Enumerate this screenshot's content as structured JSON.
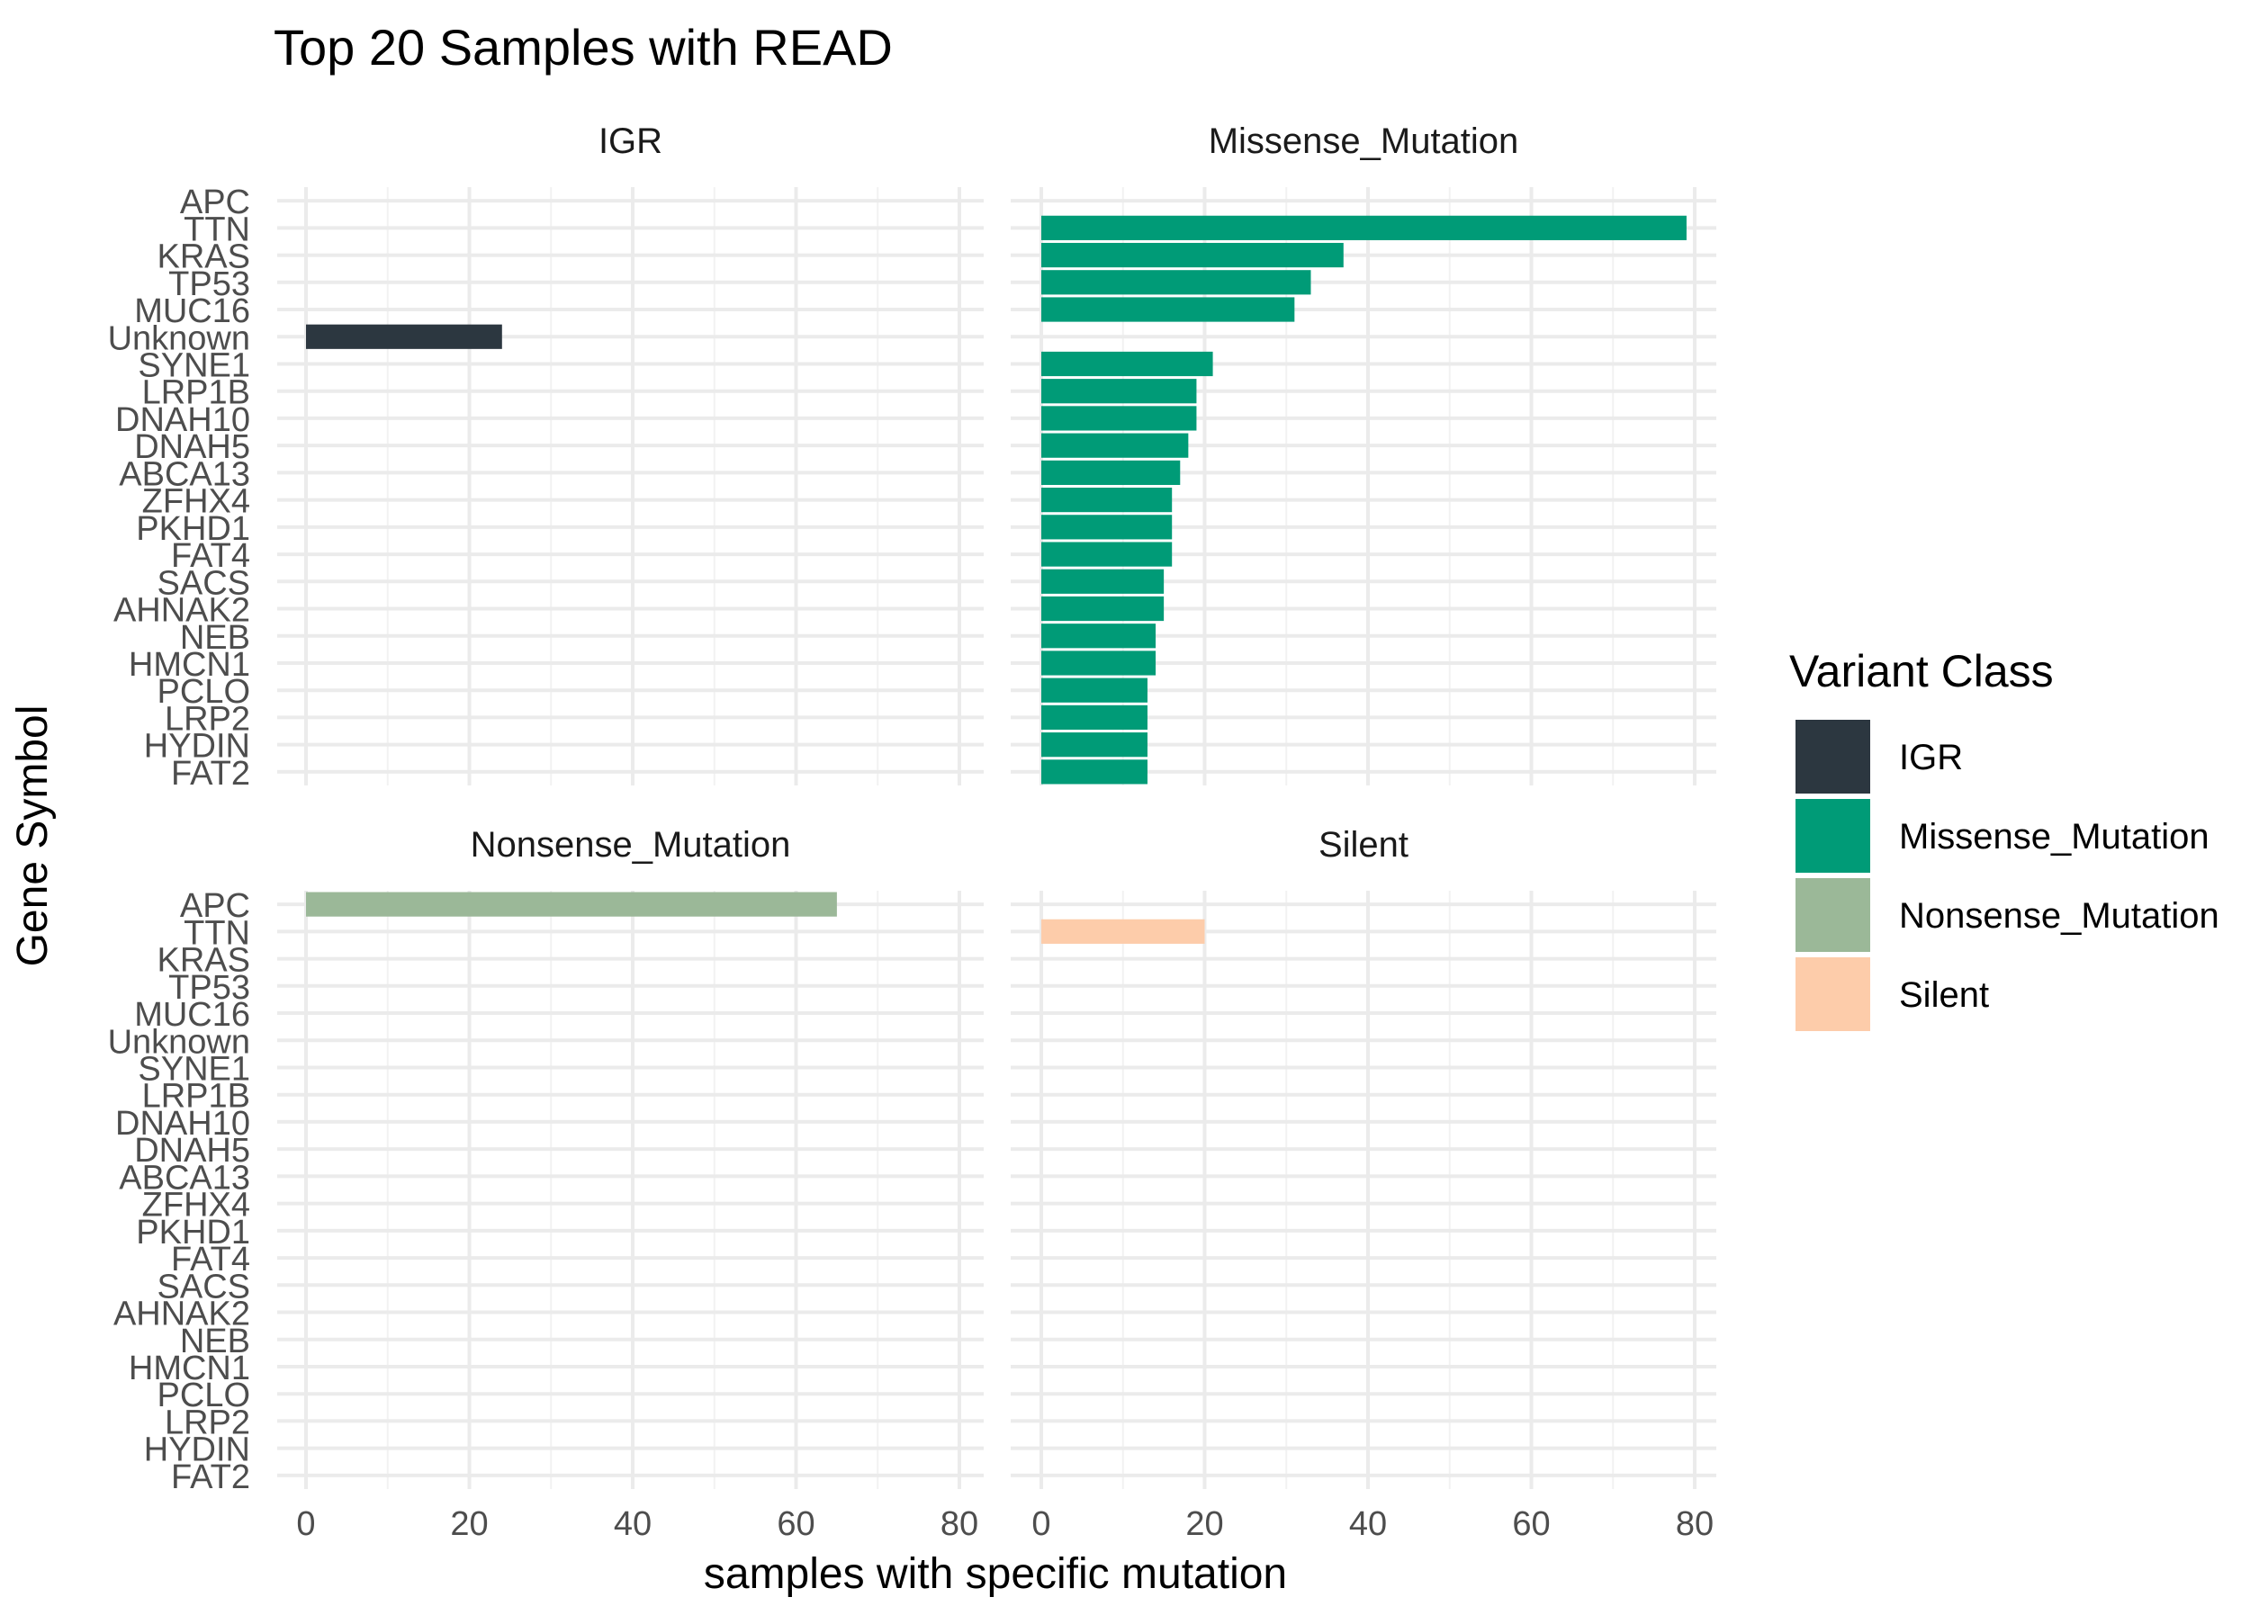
{
  "chart_data": {
    "type": "bar",
    "orientation": "horizontal",
    "title": "Top 20 Samples with READ",
    "xlabel": "samples with specific mutation",
    "ylabel": "Gene Symbol",
    "xlim": [
      0,
      80
    ],
    "x_ticks": [
      0,
      20,
      40,
      60,
      80
    ],
    "grid": true,
    "legend_position": "right",
    "legend_title": "Variant Class",
    "categories": [
      "APC",
      "TTN",
      "KRAS",
      "TP53",
      "MUC16",
      "Unknown",
      "SYNE1",
      "LRP1B",
      "DNAH10",
      "DNAH5",
      "ABCA13",
      "ZFHX4",
      "PKHD1",
      "FAT4",
      "SACS",
      "AHNAK2",
      "NEB",
      "HMCN1",
      "PCLO",
      "LRP2",
      "HYDIN",
      "FAT2"
    ],
    "series": [
      {
        "name": "IGR",
        "color": "#2c3740",
        "values": [
          null,
          null,
          null,
          null,
          null,
          24,
          null,
          null,
          null,
          null,
          null,
          null,
          null,
          null,
          null,
          null,
          null,
          null,
          null,
          null,
          null,
          null
        ]
      },
      {
        "name": "Missense_Mutation",
        "color": "#009b77",
        "values": [
          null,
          79,
          37,
          33,
          31,
          null,
          21,
          19,
          19,
          18,
          17,
          16,
          16,
          16,
          15,
          15,
          14,
          14,
          13,
          13,
          13,
          13
        ]
      },
      {
        "name": "Nonsense_Mutation",
        "color": "#9bb898",
        "values": [
          65,
          null,
          null,
          null,
          null,
          null,
          null,
          null,
          null,
          null,
          null,
          null,
          null,
          null,
          null,
          null,
          null,
          null,
          null,
          null,
          null,
          null
        ]
      },
      {
        "name": "Silent",
        "color": "#fdccaa",
        "values": [
          null,
          20,
          null,
          null,
          null,
          null,
          null,
          null,
          null,
          null,
          null,
          null,
          null,
          null,
          null,
          null,
          null,
          null,
          null,
          null,
          null,
          null
        ]
      }
    ]
  }
}
